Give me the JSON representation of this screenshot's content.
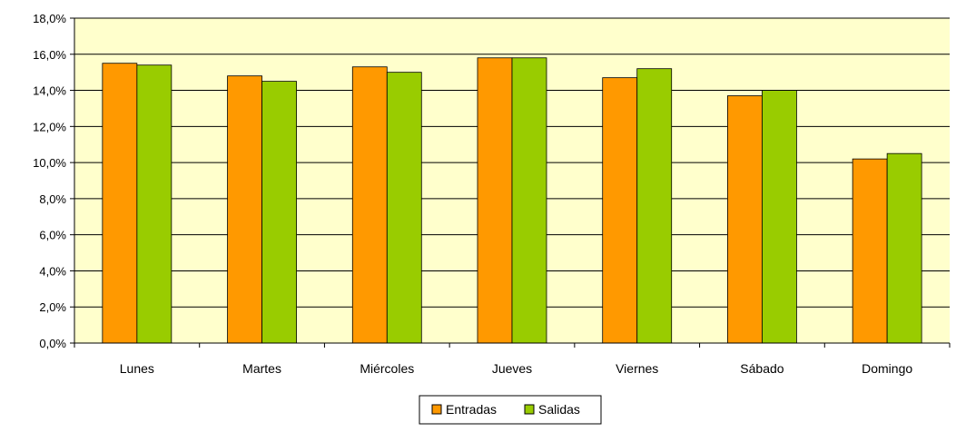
{
  "chart_data": {
    "type": "bar",
    "categories": [
      "Lunes",
      "Martes",
      "Miércoles",
      "Jueves",
      "Viernes",
      "Sábado",
      "Domingo"
    ],
    "series": [
      {
        "name": "Entradas",
        "color": "#ff9900",
        "values": [
          15.5,
          14.8,
          15.3,
          15.8,
          14.7,
          13.7,
          10.2
        ]
      },
      {
        "name": "Salidas",
        "color": "#99cc00",
        "values": [
          15.4,
          14.5,
          15.0,
          15.8,
          15.2,
          14.0,
          10.5
        ]
      }
    ],
    "y_ticks": [
      "0,0%",
      "2,0%",
      "4,0%",
      "6,0%",
      "8,0%",
      "10,0%",
      "12,0%",
      "14,0%",
      "16,0%",
      "18,0%"
    ],
    "ylim": [
      0,
      18
    ],
    "y_step": 2,
    "grid": true,
    "plot_background": "#ffffcc",
    "legend_position": "bottom-center"
  }
}
